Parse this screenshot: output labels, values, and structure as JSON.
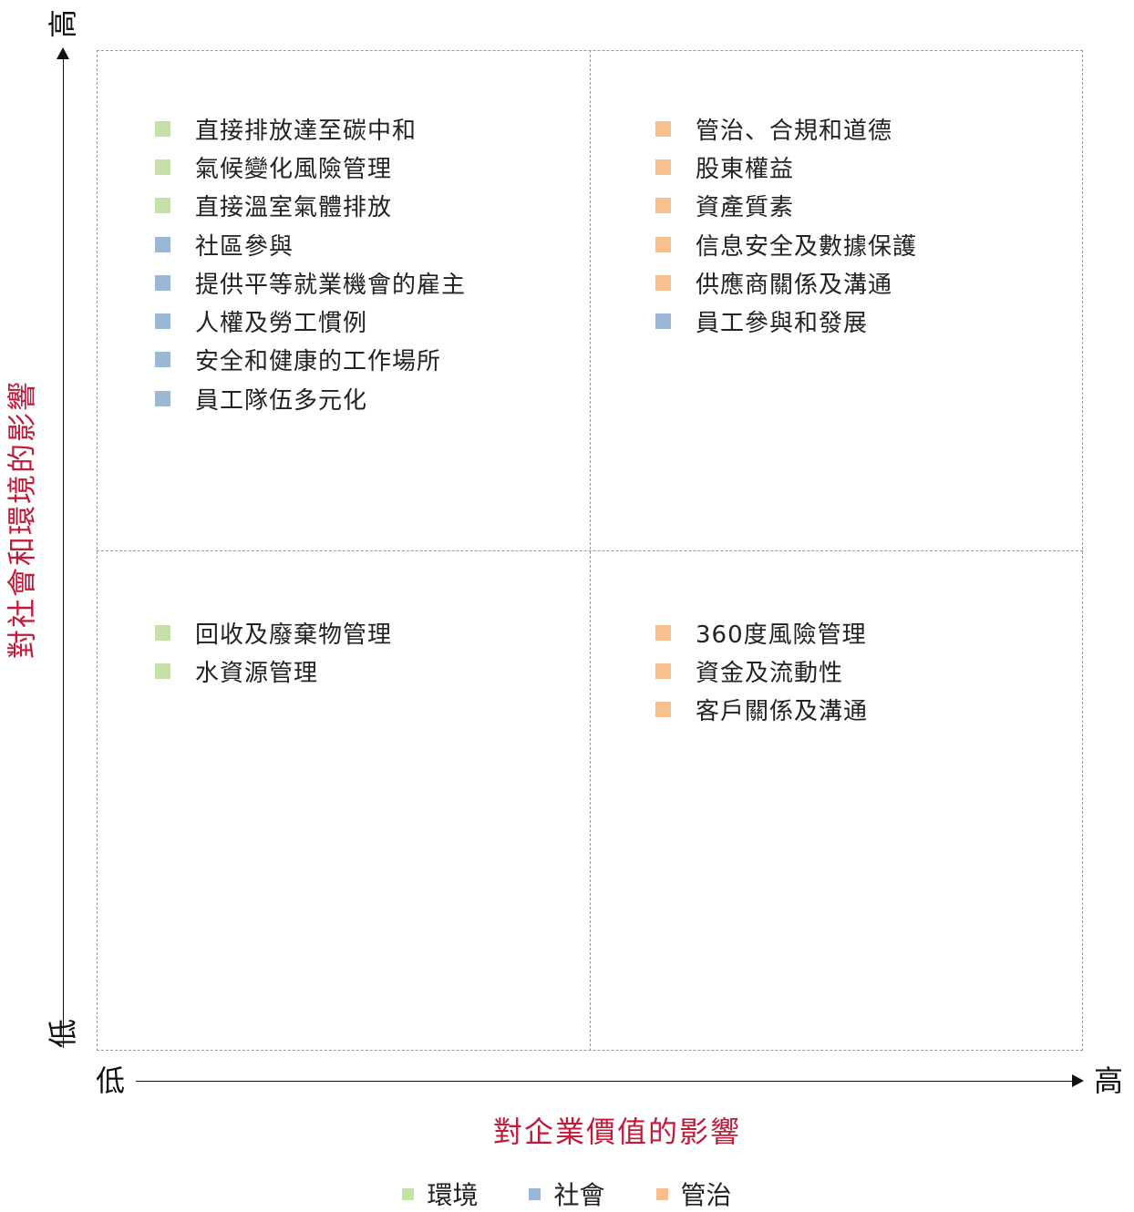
{
  "colors": {
    "environment": "#c6e0a7",
    "social": "#9bb7d6",
    "governance": "#f8c08c",
    "axis_title": "#c11b3a"
  },
  "y_axis": {
    "title": "對社會和環境的影響",
    "high": "高",
    "low": "低"
  },
  "x_axis": {
    "title": "對企業價值的影響",
    "high": "高",
    "low": "低"
  },
  "quadrants": {
    "top_left": [
      {
        "label": "直接排放達至碳中和",
        "category": "environment"
      },
      {
        "label": "氣候變化風險管理",
        "category": "environment"
      },
      {
        "label": "直接溫室氣體排放",
        "category": "environment"
      },
      {
        "label": "社區參與",
        "category": "social"
      },
      {
        "label": "提供平等就業機會的雇主",
        "category": "social"
      },
      {
        "label": "人權及勞工慣例",
        "category": "social"
      },
      {
        "label": "安全和健康的工作場所",
        "category": "social"
      },
      {
        "label": "員工隊伍多元化",
        "category": "social"
      }
    ],
    "top_right": [
      {
        "label": "管治、合規和道德",
        "category": "governance"
      },
      {
        "label": "股東權益",
        "category": "governance"
      },
      {
        "label": "資產質素",
        "category": "governance"
      },
      {
        "label": "信息安全及數據保護",
        "category": "governance"
      },
      {
        "label": "供應商關係及溝通",
        "category": "governance"
      },
      {
        "label": "員工參與和發展",
        "category": "social"
      }
    ],
    "bottom_left": [
      {
        "label": "回收及廢棄物管理",
        "category": "environment"
      },
      {
        "label": "水資源管理",
        "category": "environment"
      }
    ],
    "bottom_right": [
      {
        "label": "360度風險管理",
        "category": "governance"
      },
      {
        "label": "資金及流動性",
        "category": "governance"
      },
      {
        "label": "客戶關係及溝通",
        "category": "governance"
      }
    ]
  },
  "legend": [
    {
      "label": "環境",
      "category": "environment"
    },
    {
      "label": "社會",
      "category": "social"
    },
    {
      "label": "管治",
      "category": "governance"
    }
  ]
}
